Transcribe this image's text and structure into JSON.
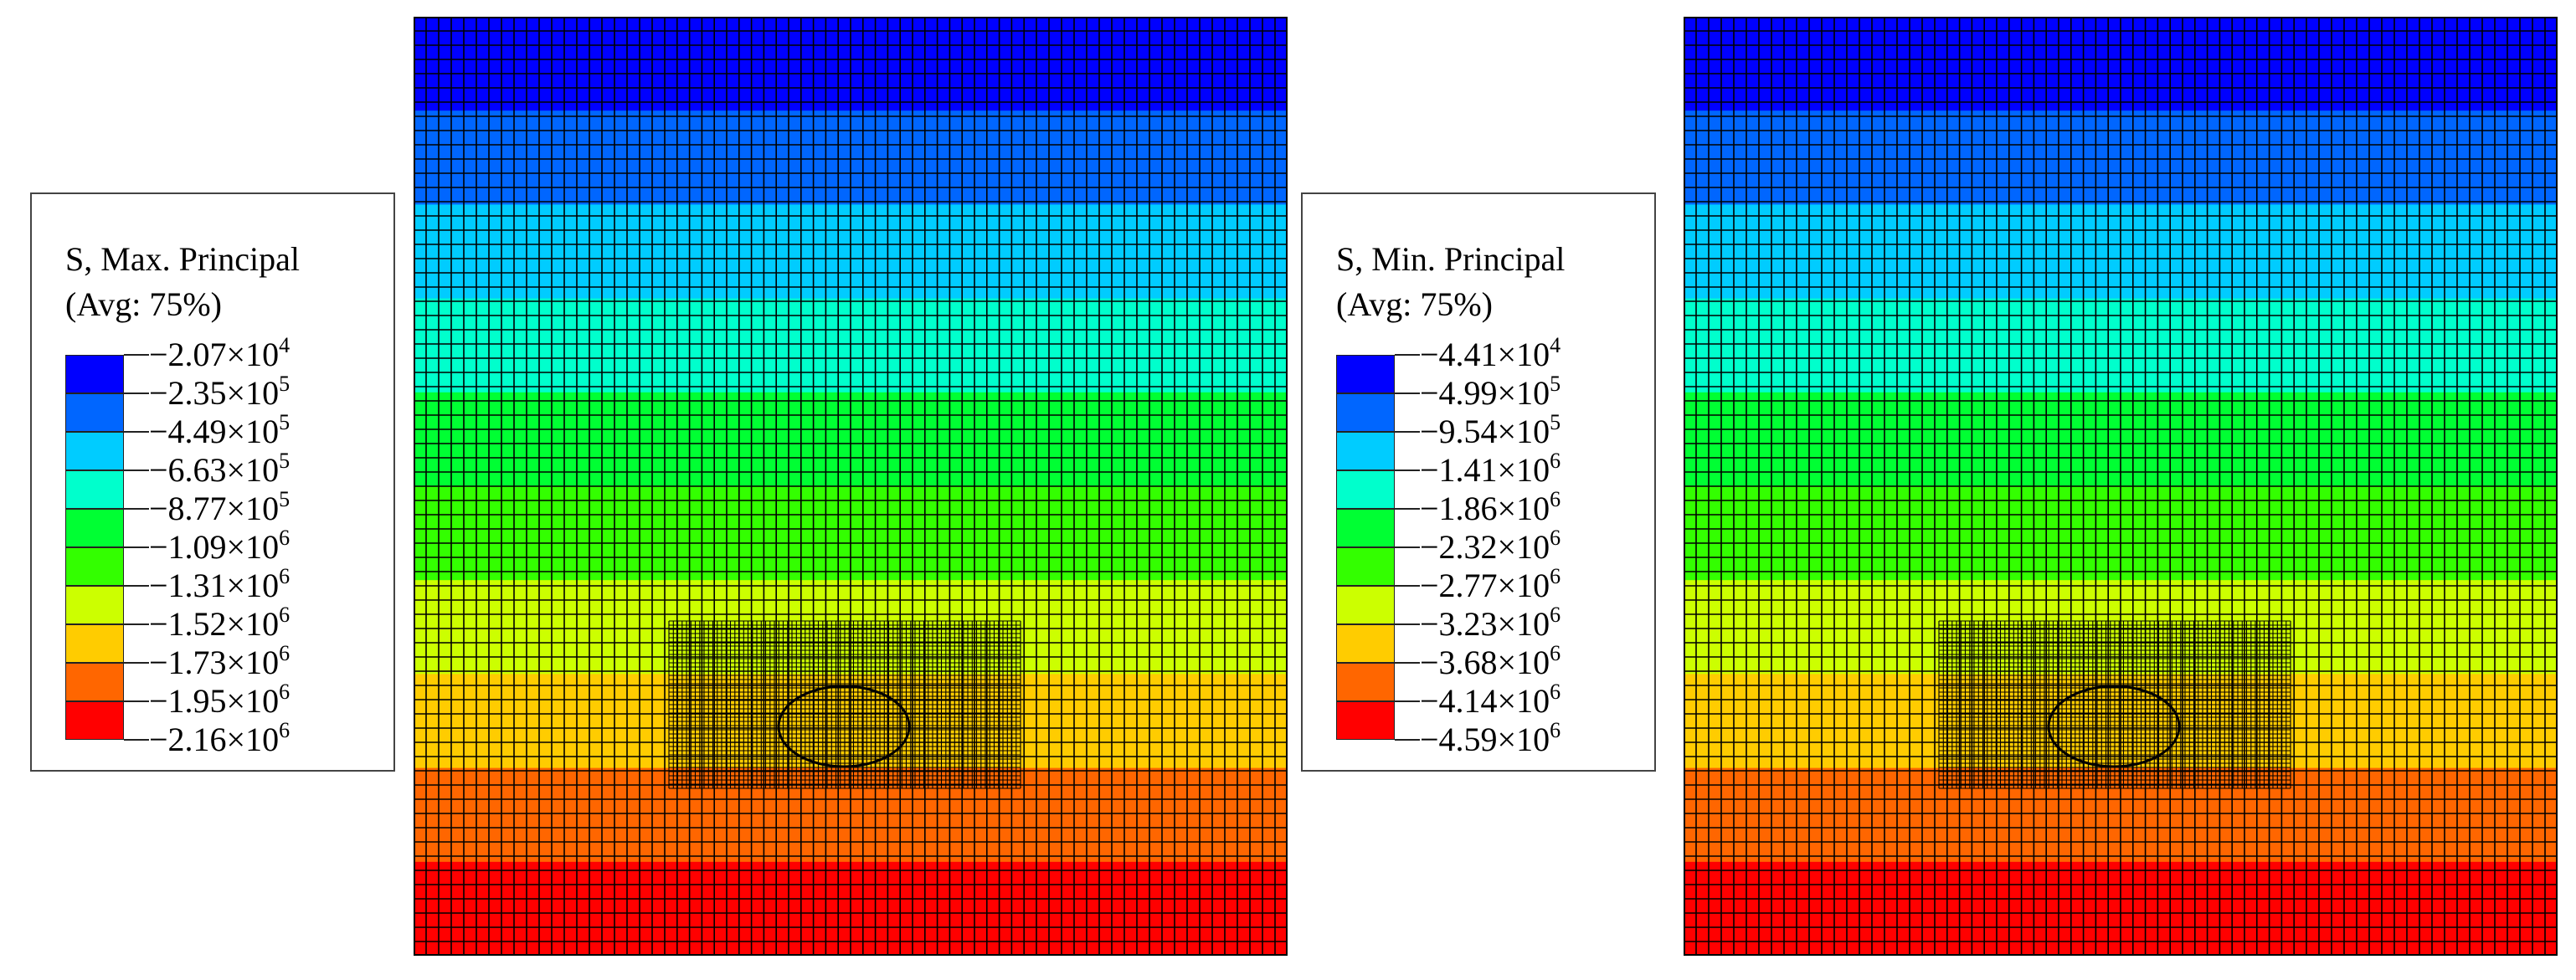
{
  "colors": [
    "#0000ff",
    "#0066ff",
    "#00ccff",
    "#00ffcc",
    "#00ff33",
    "#33ff00",
    "#ccff00",
    "#ffcc00",
    "#ff6600",
    "#ff0000"
  ],
  "panels": [
    {
      "legend": {
        "title": "S, Max. Principal",
        "subtitle": "(Avg: 75%)",
        "values": [
          {
            "mant": "−2.07×10",
            "exp": "4"
          },
          {
            "mant": "−2.35×10",
            "exp": "5"
          },
          {
            "mant": "−4.49×10",
            "exp": "5"
          },
          {
            "mant": "−6.63×10",
            "exp": "5"
          },
          {
            "mant": "−8.77×10",
            "exp": "5"
          },
          {
            "mant": "−1.09×10",
            "exp": "6"
          },
          {
            "mant": "−1.31×10",
            "exp": "6"
          },
          {
            "mant": "−1.52×10",
            "exp": "6"
          },
          {
            "mant": "−1.73×10",
            "exp": "6"
          },
          {
            "mant": "−1.95×10",
            "exp": "6"
          },
          {
            "mant": "−2.16×10",
            "exp": "6"
          }
        ]
      }
    },
    {
      "legend": {
        "title": "S, Min. Principal",
        "subtitle": "(Avg: 75%)",
        "values": [
          {
            "mant": "−4.41×10",
            "exp": "4"
          },
          {
            "mant": "−4.99×10",
            "exp": "5"
          },
          {
            "mant": "−9.54×10",
            "exp": "5"
          },
          {
            "mant": "−1.41×10",
            "exp": "6"
          },
          {
            "mant": "−1.86×10",
            "exp": "6"
          },
          {
            "mant": "−2.32×10",
            "exp": "6"
          },
          {
            "mant": "−2.77×10",
            "exp": "6"
          },
          {
            "mant": "−3.23×10",
            "exp": "6"
          },
          {
            "mant": "−3.68×10",
            "exp": "6"
          },
          {
            "mant": "−4.14×10",
            "exp": "6"
          },
          {
            "mant": "−4.59×10",
            "exp": "6"
          }
        ]
      }
    }
  ]
}
